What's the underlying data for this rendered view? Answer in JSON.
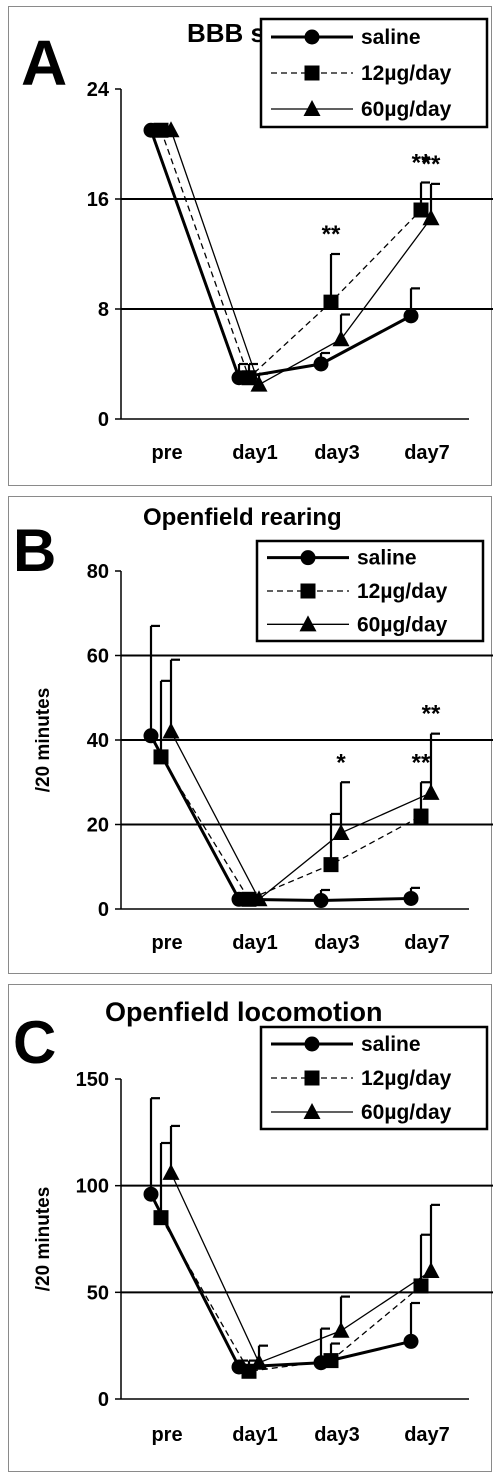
{
  "legend": [
    {
      "label": "saline",
      "marker": "circle",
      "dash": "solid",
      "width": "thick"
    },
    {
      "label": "12µg/day",
      "marker": "square",
      "dash": "dashed",
      "width": "thin"
    },
    {
      "label": "60µg/day",
      "marker": "triangle",
      "dash": "solid",
      "width": "thin"
    }
  ],
  "chart_data": [
    {
      "type": "line",
      "panel_letter": "A",
      "title": "BBB score",
      "ylabel": "",
      "categories": [
        "pre",
        "day1",
        "day3",
        "day7"
      ],
      "ylim": [
        0,
        24
      ],
      "yticks": [
        "0",
        "8",
        "16",
        "24"
      ],
      "gridlines": [
        8,
        16
      ],
      "series": [
        {
          "name": "saline",
          "values": [
            21,
            3,
            4,
            7.5
          ],
          "errors": [
            0,
            1,
            0.8,
            2
          ]
        },
        {
          "name": "12µg/day",
          "values": [
            21,
            3,
            8.5,
            15.2
          ],
          "errors": [
            0,
            1,
            3.5,
            2
          ]
        },
        {
          "name": "60µg/day",
          "values": [
            21,
            2.5,
            5.8,
            14.6
          ],
          "errors": [
            0,
            0.8,
            1.8,
            2.5
          ]
        }
      ],
      "significance": [
        {
          "series": 1,
          "index": 2,
          "text": "**"
        },
        {
          "series": 1,
          "index": 3,
          "text": "**"
        },
        {
          "series": 2,
          "index": 3,
          "text": "**"
        }
      ]
    },
    {
      "type": "line",
      "panel_letter": "B",
      "title": "Openfield rearing",
      "ylabel": "/20 minutes",
      "categories": [
        "pre",
        "day1",
        "day3",
        "day7"
      ],
      "ylim": [
        0,
        80
      ],
      "yticks": [
        "0",
        "20",
        "40",
        "60",
        "80"
      ],
      "gridlines": [
        20,
        40,
        60
      ],
      "series": [
        {
          "name": "saline",
          "values": [
            41,
            2.3,
            2,
            2.5
          ],
          "errors": [
            26,
            0,
            2.5,
            2.5
          ]
        },
        {
          "name": "12µg/day",
          "values": [
            36,
            2.3,
            10.5,
            22
          ],
          "errors": [
            18,
            0,
            12,
            8
          ]
        },
        {
          "name": "60µg/day",
          "values": [
            42,
            2.3,
            18,
            27.5
          ],
          "errors": [
            17,
            0,
            12,
            14
          ]
        }
      ],
      "significance": [
        {
          "series": 2,
          "index": 2,
          "text": "*"
        },
        {
          "series": 1,
          "index": 3,
          "text": "**"
        },
        {
          "series": 2,
          "index": 3,
          "text": "**"
        }
      ]
    },
    {
      "type": "line",
      "panel_letter": "C",
      "title": "Openfield locomotion",
      "ylabel": "/20 minutes",
      "categories": [
        "pre",
        "day1",
        "day3",
        "day7"
      ],
      "ylim": [
        0,
        150
      ],
      "yticks": [
        "0",
        "50",
        "100",
        "150"
      ],
      "gridlines": [
        50,
        100
      ],
      "series": [
        {
          "name": "saline",
          "values": [
            96,
            15,
            17,
            27
          ],
          "errors": [
            45,
            3,
            16,
            18
          ]
        },
        {
          "name": "12µg/day",
          "values": [
            85,
            13,
            18,
            53
          ],
          "errors": [
            35,
            5,
            8,
            24
          ]
        },
        {
          "name": "60µg/day",
          "values": [
            106,
            17,
            32,
            60
          ],
          "errors": [
            22,
            8,
            16,
            31
          ]
        }
      ],
      "significance": []
    }
  ]
}
